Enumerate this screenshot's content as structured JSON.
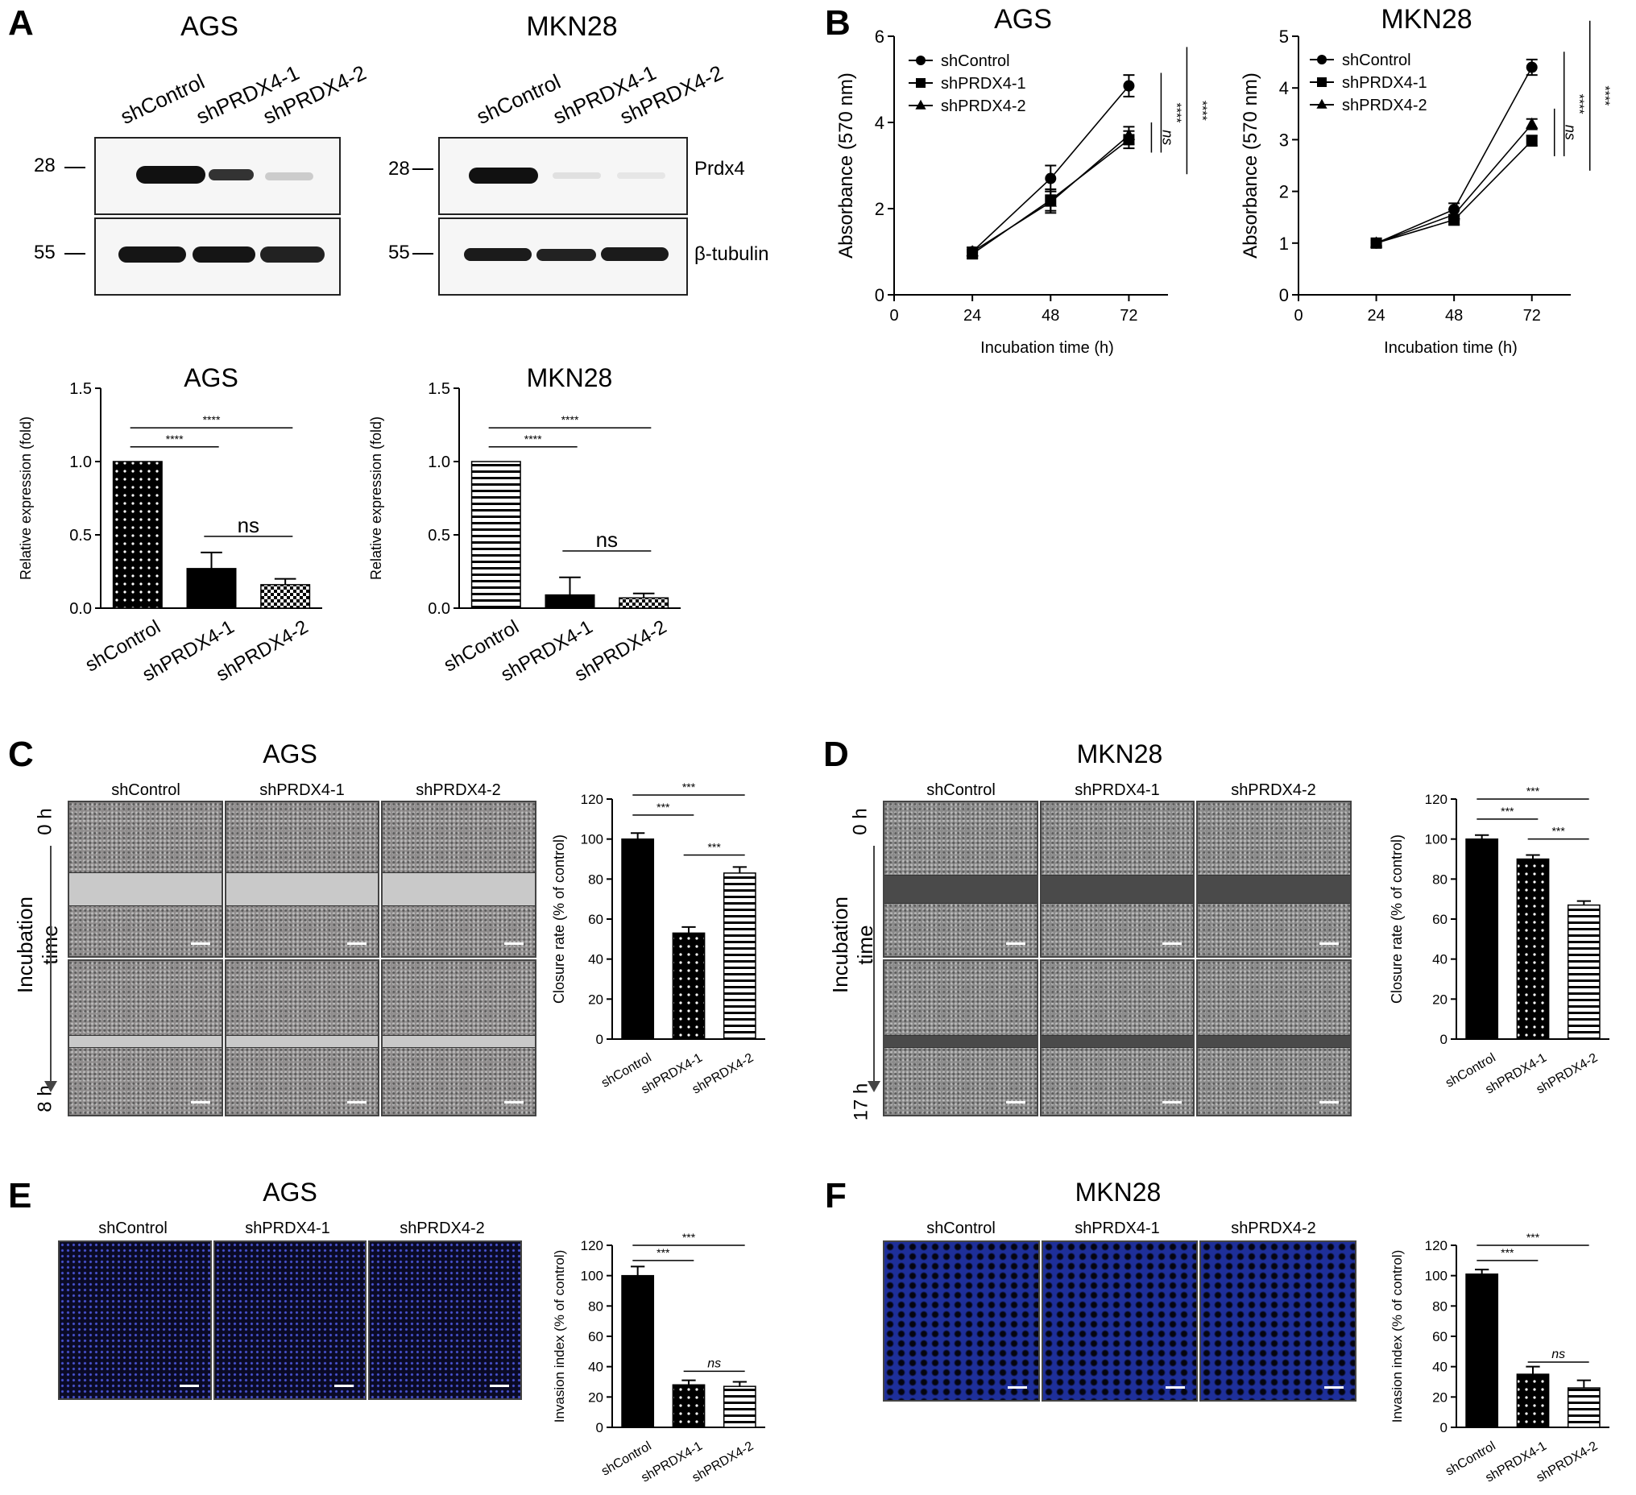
{
  "panels": {
    "A": {
      "letter": "A",
      "blot_titles": [
        "AGS",
        "MKN28"
      ],
      "lanes": [
        "shControl",
        "shPRDX4-1",
        "shPRDX4-2"
      ],
      "markers": [
        "28",
        "55"
      ],
      "proteins": [
        "Prdx4",
        "β-tubulin"
      ]
    },
    "B": {
      "letter": "B"
    },
    "C": {
      "letter": "C",
      "title": "AGS",
      "time_axis": "Incubation time",
      "t0": "0 h",
      "t1": "8 h",
      "columns": [
        "shControl",
        "shPRDX4-1",
        "shPRDX4-2"
      ]
    },
    "D": {
      "letter": "D",
      "title": "MKN28",
      "time_axis": "Incubation time",
      "t0": "0 h",
      "t1": "17 h",
      "columns": [
        "shControl",
        "shPRDX4-1",
        "shPRDX4-2"
      ]
    },
    "E": {
      "letter": "E",
      "title": "AGS",
      "columns": [
        "shControl",
        "shPRDX4-1",
        "shPRDX4-2"
      ]
    },
    "F": {
      "letter": "F",
      "title": "MKN28",
      "columns": [
        "shControl",
        "shPRDX4-1",
        "shPRDX4-2"
      ]
    }
  },
  "chart_data": [
    {
      "id": "a-ags-bar",
      "type": "bar",
      "title": "AGS",
      "categories": [
        "shControl",
        "shPRDX4-1",
        "shPRDX4-2"
      ],
      "values": [
        1.0,
        0.27,
        0.16
      ],
      "errors": [
        0,
        0.11,
        0.04
      ],
      "ylabel": "Relative expression (fold)",
      "ylim": [
        0,
        1.5
      ],
      "yticks": [
        "0.0",
        "0.5",
        "1.0",
        "1.5"
      ],
      "patterns": [
        "dots",
        "solid",
        "checker"
      ],
      "annotations": [
        {
          "from": 0,
          "to": 1,
          "text": "****"
        },
        {
          "from": 0,
          "to": 2,
          "text": "****"
        },
        {
          "from": 1,
          "to": 2,
          "text": "ns"
        }
      ]
    },
    {
      "id": "a-mkn-bar",
      "type": "bar",
      "title": "MKN28",
      "categories": [
        "shControl",
        "shPRDX4-1",
        "shPRDX4-2"
      ],
      "values": [
        1.0,
        0.09,
        0.07
      ],
      "errors": [
        0,
        0.12,
        0.03
      ],
      "ylabel": "Relative expression (fold)",
      "ylim": [
        0,
        1.5
      ],
      "yticks": [
        "0.0",
        "0.5",
        "1.0",
        "1.5"
      ],
      "patterns": [
        "hstripe-dots",
        "solid",
        "checker"
      ],
      "annotations": [
        {
          "from": 0,
          "to": 1,
          "text": "****"
        },
        {
          "from": 0,
          "to": 2,
          "text": "****"
        },
        {
          "from": 1,
          "to": 2,
          "text": "ns"
        }
      ]
    },
    {
      "id": "b-ags-line",
      "type": "line",
      "title": "AGS",
      "x": [
        24,
        48,
        72
      ],
      "xticks": [
        "0",
        "24",
        "48",
        "72"
      ],
      "xlim": [
        0,
        84
      ],
      "xlabel": "Incubation time (h)",
      "ylabel": "Absorbance (570 nm)",
      "ylim": [
        0,
        6
      ],
      "yticks": [
        "0",
        "2",
        "4",
        "6"
      ],
      "series": [
        {
          "name": "shControl",
          "marker": "circle",
          "values": [
            1.0,
            2.7,
            4.85
          ],
          "errors": [
            0.1,
            0.3,
            0.25
          ]
        },
        {
          "name": "shPRDX4-1",
          "marker": "square",
          "values": [
            0.95,
            2.2,
            3.6
          ],
          "errors": [
            0.1,
            0.25,
            0.2
          ]
        },
        {
          "name": "shPRDX4-2",
          "marker": "triangle",
          "values": [
            1.0,
            2.15,
            3.7
          ],
          "errors": [
            0.1,
            0.25,
            0.2
          ]
        }
      ],
      "sig": [
        {
          "text": "****"
        },
        {
          "text": "ns"
        },
        {
          "text": "****"
        }
      ]
    },
    {
      "id": "b-mkn-line",
      "type": "line",
      "title": "MKN28",
      "x": [
        24,
        48,
        72
      ],
      "xticks": [
        "0",
        "24",
        "48",
        "72"
      ],
      "xlim": [
        0,
        84
      ],
      "xlabel": "Incubation time (h)",
      "ylabel": "Absorbance (570 nm)",
      "ylim": [
        0,
        5
      ],
      "yticks": [
        "0",
        "1",
        "2",
        "3",
        "4",
        "5"
      ],
      "series": [
        {
          "name": "shControl",
          "marker": "circle",
          "values": [
            1.0,
            1.65,
            4.4
          ],
          "errors": [
            0.05,
            0.12,
            0.15
          ]
        },
        {
          "name": "shPRDX4-1",
          "marker": "square",
          "values": [
            1.0,
            1.45,
            2.98
          ],
          "errors": [
            0.05,
            0.1,
            0.1
          ]
        },
        {
          "name": "shPRDX4-2",
          "marker": "triangle",
          "values": [
            1.0,
            1.55,
            3.3
          ],
          "errors": [
            0.05,
            0.1,
            0.1
          ]
        }
      ],
      "sig": [
        {
          "text": "****"
        },
        {
          "text": "ns"
        },
        {
          "text": "****"
        }
      ]
    },
    {
      "id": "c-bar",
      "type": "bar",
      "categories": [
        "shControl",
        "shPRDX4-1",
        "shPRDX4-2"
      ],
      "values": [
        100,
        53,
        83
      ],
      "errors": [
        3,
        3,
        3
      ],
      "ylabel": "Closure rate (% of control)",
      "ylim": [
        0,
        120
      ],
      "yticks": [
        "0",
        "20",
        "40",
        "60",
        "80",
        "100",
        "120"
      ],
      "patterns": [
        "solid",
        "dots",
        "hstripe"
      ],
      "annotations": [
        {
          "from": 0,
          "to": 1,
          "text": "***"
        },
        {
          "from": 0,
          "to": 2,
          "text": "***"
        },
        {
          "from": 1,
          "to": 2,
          "text": "***"
        }
      ]
    },
    {
      "id": "d-bar",
      "type": "bar",
      "categories": [
        "shControl",
        "shPRDX4-1",
        "shPRDX4-2"
      ],
      "values": [
        100,
        90,
        67
      ],
      "errors": [
        2,
        2,
        2
      ],
      "ylabel": "Closure rate (% of control)",
      "ylim": [
        0,
        120
      ],
      "yticks": [
        "0",
        "20",
        "40",
        "60",
        "80",
        "100",
        "120"
      ],
      "patterns": [
        "solid",
        "dots",
        "hstripe"
      ],
      "annotations": [
        {
          "from": 0,
          "to": 1,
          "text": "***"
        },
        {
          "from": 0,
          "to": 2,
          "text": "***"
        },
        {
          "from": 1,
          "to": 2,
          "text": "***"
        }
      ]
    },
    {
      "id": "e-bar",
      "type": "bar",
      "categories": [
        "shControl",
        "shPRDX4-1",
        "shPRDX4-2"
      ],
      "values": [
        100,
        28,
        27
      ],
      "errors": [
        6,
        3,
        3
      ],
      "ylabel": "Invasion index (% of control)",
      "ylim": [
        0,
        120
      ],
      "yticks": [
        "0",
        "20",
        "40",
        "60",
        "80",
        "100",
        "120"
      ],
      "patterns": [
        "solid",
        "dots",
        "hstripe"
      ],
      "annotations": [
        {
          "from": 0,
          "to": 1,
          "text": "***"
        },
        {
          "from": 0,
          "to": 2,
          "text": "***"
        },
        {
          "from": 1,
          "to": 2,
          "text": "ns"
        }
      ]
    },
    {
      "id": "f-bar",
      "type": "bar",
      "categories": [
        "shControl",
        "shPRDX4-1",
        "shPRDX4-2"
      ],
      "values": [
        101,
        35,
        26
      ],
      "errors": [
        3,
        5,
        5
      ],
      "ylabel": "Invasion index (% of control)",
      "ylim": [
        0,
        120
      ],
      "yticks": [
        "0",
        "20",
        "40",
        "60",
        "80",
        "100",
        "120"
      ],
      "patterns": [
        "solid",
        "dots",
        "hstripe"
      ],
      "annotations": [
        {
          "from": 0,
          "to": 1,
          "text": "***"
        },
        {
          "from": 0,
          "to": 2,
          "text": "***"
        },
        {
          "from": 1,
          "to": 2,
          "text": "ns"
        }
      ]
    }
  ]
}
